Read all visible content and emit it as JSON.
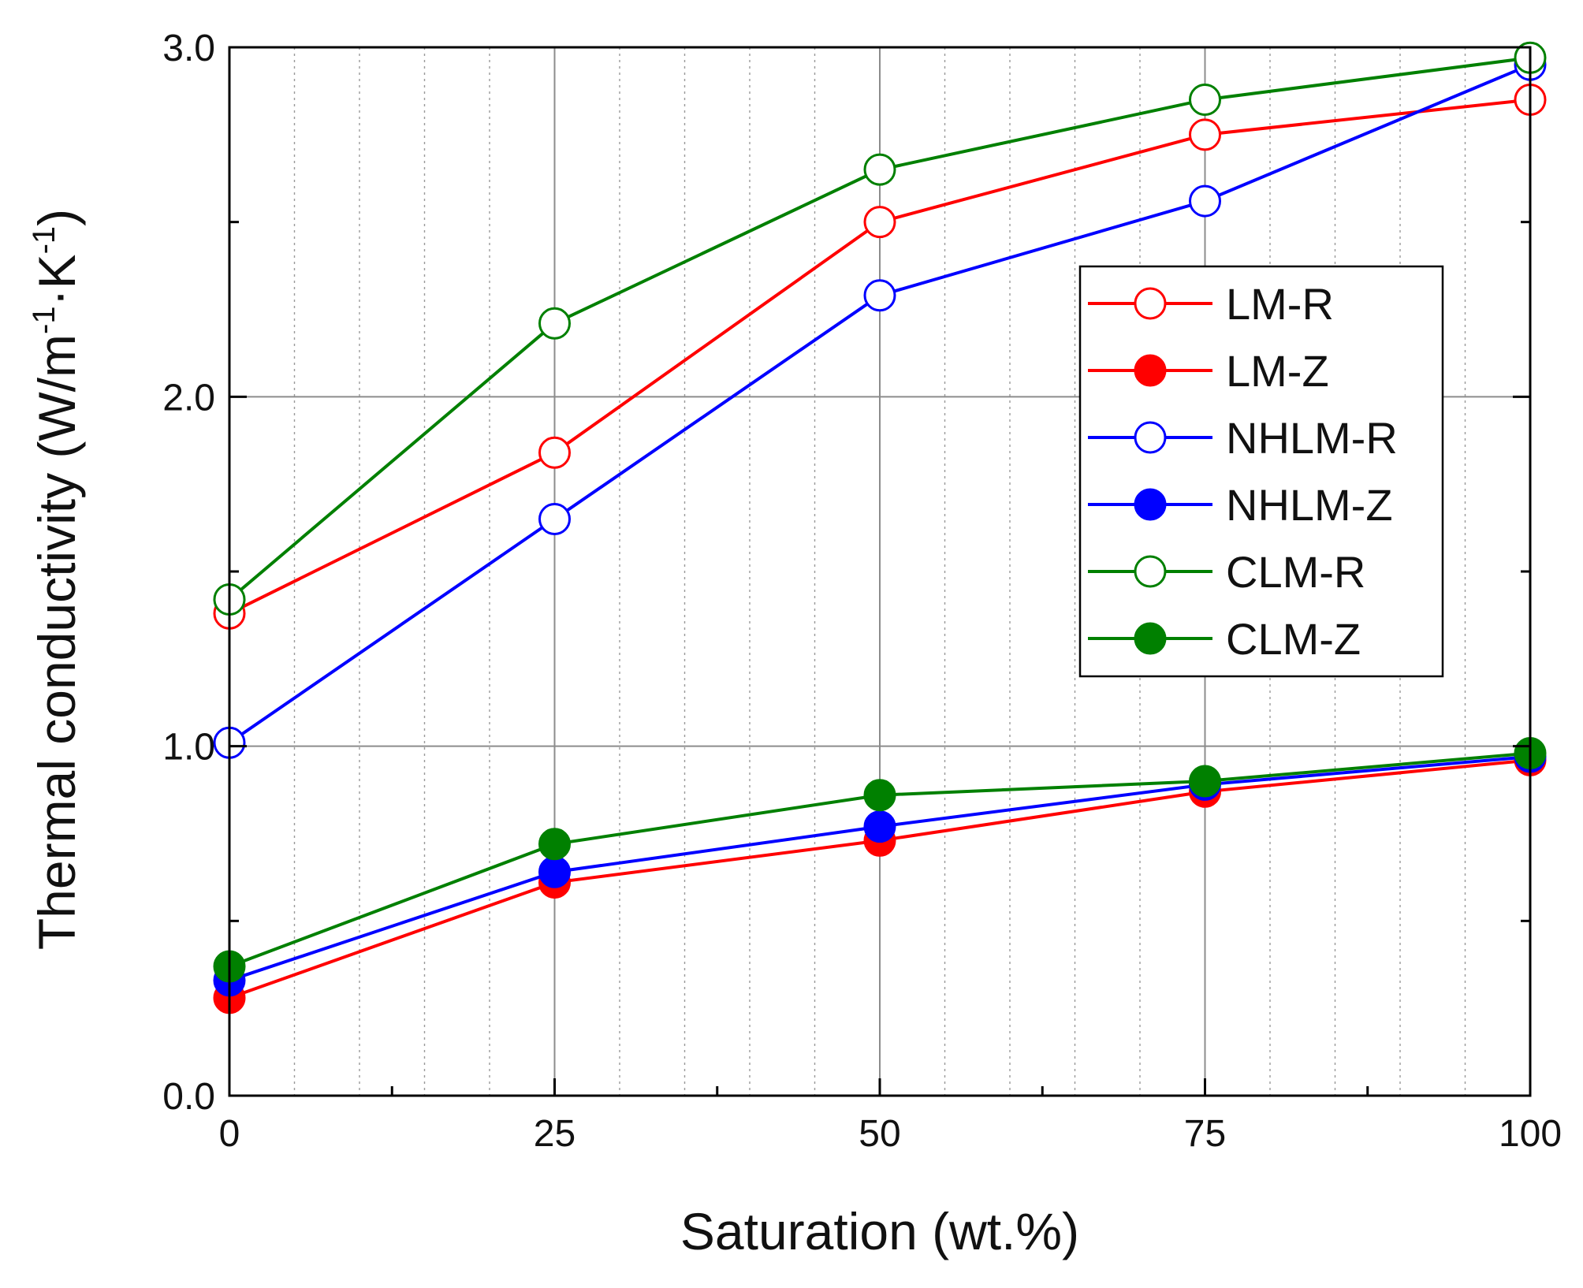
{
  "chart_data": {
    "type": "line",
    "title": "",
    "xlabel": "Saturation (wt.%)",
    "ylabel_main": "Thermal conductivity (W/m",
    "ylabel_sup1": "-1",
    "ylabel_mid": "·K",
    "ylabel_sup2": "-1",
    "ylabel_end": ")",
    "xlim": [
      0,
      100
    ],
    "ylim": [
      0,
      3
    ],
    "x_ticks": [
      0,
      25,
      50,
      75,
      100
    ],
    "x_tick_labels": [
      "0",
      "25",
      "50",
      "75",
      "100"
    ],
    "y_ticks": [
      0,
      1,
      2,
      3
    ],
    "y_tick_labels": [
      "0.0",
      "1.0",
      "2.0",
      "3.0"
    ],
    "grid": true,
    "legend_position": "right-middle",
    "x": [
      0,
      25,
      50,
      75,
      100
    ],
    "series": [
      {
        "name": "LM-R",
        "color": "#ff0000",
        "marker": "open-circle",
        "values": [
          1.38,
          1.84,
          2.5,
          2.75,
          2.85
        ]
      },
      {
        "name": "LM-Z",
        "color": "#ff0000",
        "marker": "filled-circle",
        "values": [
          0.28,
          0.61,
          0.73,
          0.87,
          0.96
        ]
      },
      {
        "name": "NHLM-R",
        "color": "#0000ff",
        "marker": "open-circle",
        "values": [
          1.01,
          1.65,
          2.29,
          2.56,
          2.95
        ]
      },
      {
        "name": "NHLM-Z",
        "color": "#0000ff",
        "marker": "filled-circle",
        "values": [
          0.33,
          0.64,
          0.77,
          0.89,
          0.97
        ]
      },
      {
        "name": "CLM-R",
        "color": "#008000",
        "marker": "open-circle",
        "values": [
          1.42,
          2.21,
          2.65,
          2.85,
          2.97
        ]
      },
      {
        "name": "CLM-Z",
        "color": "#008000",
        "marker": "filled-circle",
        "values": [
          0.37,
          0.72,
          0.86,
          0.9,
          0.98
        ]
      }
    ]
  }
}
